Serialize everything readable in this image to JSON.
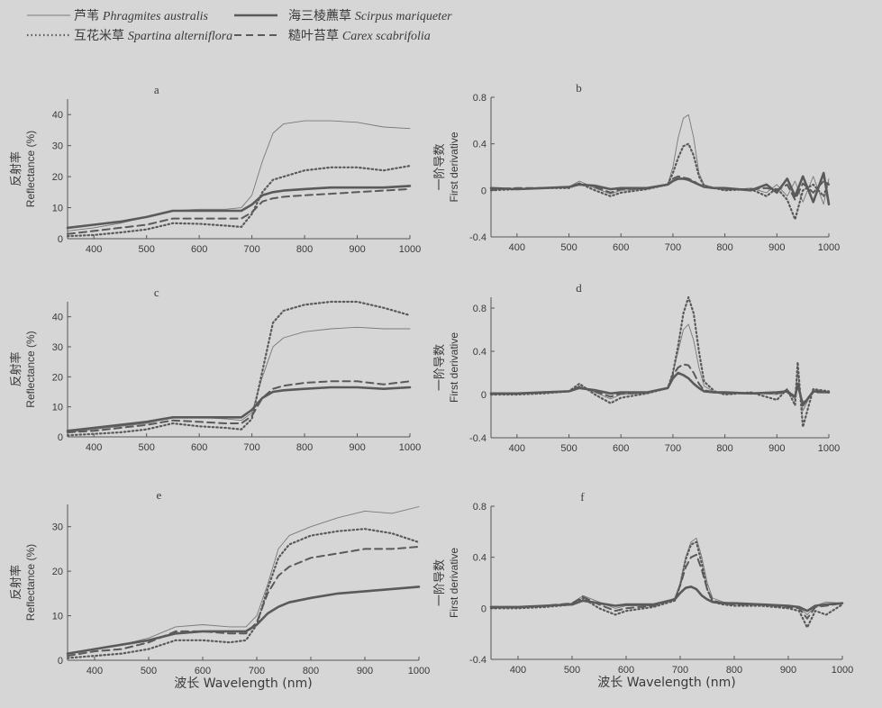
{
  "legend": [
    {
      "cn": "芦苇",
      "latin": "Phragmites australis",
      "style": "thin"
    },
    {
      "cn": "互花米草",
      "latin": "Spartina alterniflora",
      "style": "dotted"
    },
    {
      "cn": "海三棱藨草",
      "latin": "Scirpus mariqueter",
      "style": "thick"
    },
    {
      "cn": "糙叶苔草",
      "latin": "Carex scabrifolia",
      "style": "dashed"
    }
  ],
  "colors": {
    "background": "#d6d6d6",
    "axis": "#555555",
    "line": "#5a5a5a",
    "text": "#3a3a3a"
  },
  "shared_xlabel": "波长 Wavelength (nm)",
  "chart_data": [
    {
      "type": "line",
      "panel": "a",
      "ylabel_cn": "反射率",
      "ylabel": "Reflectance (%)",
      "xlim": [
        350,
        1000
      ],
      "ylim": [
        0,
        45
      ],
      "xticks": [
        400,
        500,
        600,
        700,
        800,
        900,
        1000
      ],
      "yticks": [
        0,
        10,
        20,
        30,
        40
      ],
      "x": [
        350,
        400,
        450,
        500,
        550,
        600,
        650,
        680,
        700,
        720,
        740,
        760,
        800,
        850,
        900,
        950,
        1000
      ],
      "series": [
        {
          "name": "芦苇 Phragmites australis",
          "values": [
            2.5,
            3.5,
            5,
            7,
            9,
            9.5,
            9.5,
            10,
            14,
            25,
            34,
            37,
            38,
            38,
            37.5,
            36,
            35.5
          ]
        },
        {
          "name": "互花米草 Spartina alterniflora",
          "values": [
            0.8,
            1.2,
            2,
            3,
            5,
            4.8,
            4.2,
            3.8,
            8,
            15,
            19,
            20,
            22,
            23,
            23,
            22,
            23.5
          ]
        },
        {
          "name": "海三棱藨草 Scirpus mariqueter",
          "values": [
            3.5,
            4.5,
            5.5,
            7,
            9,
            9,
            9,
            9,
            11,
            14,
            15,
            15.5,
            16,
            16.5,
            16.5,
            16.5,
            17
          ]
        },
        {
          "name": "糙叶苔草 Carex scabrifolia",
          "values": [
            1.5,
            2.5,
            3.5,
            4.5,
            6.5,
            6.5,
            6.5,
            6.5,
            8.5,
            12,
            13,
            13.5,
            14,
            14.5,
            15,
            15.5,
            16
          ]
        }
      ]
    },
    {
      "type": "line",
      "panel": "b",
      "ylabel_cn": "一阶导数",
      "ylabel": "First derivative",
      "xlim": [
        350,
        1000
      ],
      "ylim": [
        -0.4,
        0.8
      ],
      "xticks": [
        400,
        500,
        600,
        700,
        800,
        900,
        1000
      ],
      "yticks": [
        -0.4,
        0.0,
        0.4,
        0.8
      ],
      "x": [
        350,
        400,
        450,
        500,
        520,
        550,
        580,
        600,
        650,
        690,
        700,
        710,
        720,
        730,
        740,
        750,
        760,
        780,
        800,
        850,
        880,
        900,
        920,
        935,
        950,
        970,
        990,
        1000
      ],
      "series": [
        {
          "name": "芦苇 Phragmites australis",
          "values": [
            0.02,
            0.01,
            0.02,
            0.03,
            0.08,
            0.02,
            -0.03,
            0.0,
            0.01,
            0.05,
            0.2,
            0.45,
            0.62,
            0.65,
            0.45,
            0.15,
            0.05,
            0.02,
            0.0,
            0.02,
            -0.02,
            0.05,
            -0.05,
            0.08,
            -0.1,
            0.12,
            -0.12,
            0.1
          ]
        },
        {
          "name": "互花米草 Spartina alterniflora",
          "values": [
            0.0,
            0.01,
            0.02,
            0.02,
            0.06,
            0.0,
            -0.05,
            -0.02,
            0.01,
            0.05,
            0.15,
            0.28,
            0.38,
            0.4,
            0.3,
            0.12,
            0.04,
            0.02,
            0.0,
            0.01,
            -0.05,
            0.02,
            -0.08,
            -0.25,
            0.0,
            0.05,
            -0.05,
            0.08
          ]
        },
        {
          "name": "海三棱藨草 Scirpus mariqueter",
          "values": [
            0.02,
            0.01,
            0.02,
            0.03,
            0.05,
            0.04,
            0.01,
            0.02,
            0.02,
            0.05,
            0.08,
            0.1,
            0.1,
            0.09,
            0.07,
            0.05,
            0.03,
            0.02,
            0.02,
            0.0,
            0.05,
            -0.02,
            0.1,
            -0.05,
            0.12,
            -0.1,
            0.15,
            -0.12
          ]
        },
        {
          "name": "糙叶苔草 Carex scabrifolia",
          "values": [
            0.01,
            0.02,
            0.02,
            0.03,
            0.06,
            0.03,
            -0.02,
            0.01,
            0.02,
            0.05,
            0.1,
            0.12,
            0.11,
            0.1,
            0.08,
            0.05,
            0.03,
            0.02,
            0.01,
            0.01,
            0.02,
            0.0,
            0.05,
            -0.08,
            0.06,
            -0.02,
            0.08,
            0.05
          ]
        }
      ]
    },
    {
      "type": "line",
      "panel": "c",
      "ylabel_cn": "反射率",
      "ylabel": "Reflectance (%)",
      "xlim": [
        350,
        1000
      ],
      "ylim": [
        0,
        45
      ],
      "xticks": [
        400,
        500,
        600,
        700,
        800,
        900,
        1000
      ],
      "yticks": [
        0,
        10,
        20,
        30,
        40
      ],
      "x": [
        350,
        400,
        450,
        500,
        550,
        600,
        650,
        680,
        700,
        720,
        740,
        760,
        800,
        850,
        900,
        950,
        1000
      ],
      "series": [
        {
          "name": "芦苇 Phragmites australis",
          "values": [
            1.5,
            2.5,
            3.5,
            4.5,
            6.5,
            6.5,
            6,
            5.5,
            8,
            20,
            30,
            33,
            35,
            36,
            36.5,
            36,
            36
          ]
        },
        {
          "name": "互花米草 Spartina alterniflora",
          "values": [
            0.5,
            1,
            1.5,
            2.5,
            4.5,
            3.5,
            3,
            2.5,
            6,
            22,
            38,
            42,
            44,
            45,
            45,
            43,
            40.5
          ]
        },
        {
          "name": "海三棱藨草 Scirpus mariqueter",
          "values": [
            2,
            3,
            4,
            5,
            6.5,
            6.5,
            6.5,
            6.5,
            9,
            13,
            15,
            15.5,
            16,
            16.5,
            16.5,
            16,
            16.5
          ]
        },
        {
          "name": "糙叶苔草 Carex scabrifolia",
          "values": [
            1.5,
            2,
            3,
            4,
            5.5,
            5,
            4.5,
            4.5,
            7,
            13,
            16,
            17,
            18,
            18.5,
            18.5,
            17.5,
            18.5
          ]
        }
      ]
    },
    {
      "type": "line",
      "panel": "d",
      "ylabel_cn": "一阶导数",
      "ylabel": "First derivative",
      "xlim": [
        350,
        1000
      ],
      "ylim": [
        -0.4,
        0.9
      ],
      "xticks": [
        400,
        500,
        600,
        700,
        800,
        900,
        1000
      ],
      "yticks": [
        -0.4,
        0.0,
        0.4,
        0.8
      ],
      "x": [
        350,
        400,
        450,
        500,
        520,
        550,
        580,
        600,
        650,
        690,
        700,
        710,
        720,
        730,
        740,
        750,
        760,
        780,
        800,
        850,
        900,
        920,
        935,
        940,
        950,
        970,
        1000
      ],
      "series": [
        {
          "name": "芦苇 Phragmites australis",
          "values": [
            0.01,
            0.01,
            0.02,
            0.03,
            0.08,
            0.02,
            -0.04,
            0.0,
            0.01,
            0.06,
            0.2,
            0.4,
            0.6,
            0.65,
            0.5,
            0.25,
            0.08,
            0.02,
            0.01,
            0.02,
            0.0,
            0.05,
            -0.05,
            0.2,
            -0.15,
            0.05,
            0.02
          ]
        },
        {
          "name": "互花米草 Spartina alterniflora",
          "values": [
            0.0,
            0.0,
            0.01,
            0.03,
            0.1,
            0.0,
            -0.08,
            -0.03,
            0.01,
            0.06,
            0.2,
            0.45,
            0.75,
            0.9,
            0.75,
            0.4,
            0.12,
            0.03,
            0.0,
            0.02,
            -0.05,
            0.05,
            -0.1,
            0.3,
            -0.3,
            0.05,
            0.03
          ]
        },
        {
          "name": "海三棱藨草 Scirpus mariqueter",
          "values": [
            0.01,
            0.01,
            0.02,
            0.03,
            0.06,
            0.04,
            0.01,
            0.02,
            0.02,
            0.06,
            0.15,
            0.2,
            0.18,
            0.15,
            0.1,
            0.06,
            0.03,
            0.02,
            0.02,
            0.01,
            0.02,
            0.03,
            -0.02,
            0.1,
            -0.1,
            0.03,
            0.02
          ]
        },
        {
          "name": "糙叶苔草 Carex scabrifolia",
          "values": [
            0.01,
            0.01,
            0.02,
            0.03,
            0.07,
            0.03,
            -0.02,
            0.01,
            0.02,
            0.06,
            0.18,
            0.25,
            0.28,
            0.27,
            0.2,
            0.1,
            0.04,
            0.02,
            0.01,
            0.01,
            0.01,
            0.02,
            -0.03,
            0.08,
            -0.08,
            0.02,
            0.02
          ]
        }
      ]
    },
    {
      "type": "line",
      "panel": "e",
      "ylabel_cn": "反射率",
      "ylabel": "Reflectance (%)",
      "xlim": [
        350,
        1000
      ],
      "ylim": [
        0,
        35
      ],
      "xticks": [
        400,
        500,
        600,
        700,
        800,
        900,
        1000
      ],
      "yticks": [
        0,
        10,
        20,
        30
      ],
      "x": [
        350,
        400,
        450,
        500,
        550,
        600,
        650,
        680,
        700,
        720,
        740,
        760,
        800,
        850,
        900,
        950,
        1000
      ],
      "series": [
        {
          "name": "芦苇 Phragmites australis",
          "values": [
            1.5,
            2.5,
            3.5,
            5,
            7.5,
            8,
            7.5,
            7.5,
            10,
            17,
            25,
            28,
            30,
            32,
            33.5,
            33,
            34.5
          ]
        },
        {
          "name": "互花米草 Spartina alterniflora",
          "values": [
            0.5,
            1,
            1.5,
            2.5,
            4.5,
            4.5,
            4,
            4.5,
            8,
            16,
            23,
            26,
            28,
            29,
            29.5,
            28.5,
            26.5
          ]
        },
        {
          "name": "海三棱藨草 Scirpus mariqueter",
          "values": [
            1.5,
            2.5,
            3.5,
            4.5,
            6,
            6.5,
            6.5,
            6.5,
            8,
            10.5,
            12,
            13,
            14,
            15,
            15.5,
            16,
            16.5
          ]
        },
        {
          "name": "糙叶苔草 Carex scabrifolia",
          "values": [
            1,
            2,
            2.5,
            4,
            6.5,
            6.5,
            6,
            6,
            8.5,
            15,
            19,
            21,
            23,
            24,
            25,
            25,
            25.5
          ]
        }
      ]
    },
    {
      "type": "line",
      "panel": "f",
      "ylabel_cn": "一阶导数",
      "ylabel": "First derivative",
      "xlim": [
        350,
        1000
      ],
      "ylim": [
        -0.4,
        0.8
      ],
      "xticks": [
        400,
        500,
        600,
        700,
        800,
        900,
        1000
      ],
      "yticks": [
        -0.4,
        0.0,
        0.4,
        0.8
      ],
      "x": [
        350,
        400,
        450,
        500,
        520,
        550,
        580,
        600,
        650,
        690,
        700,
        710,
        720,
        730,
        740,
        750,
        760,
        780,
        800,
        850,
        900,
        920,
        935,
        950,
        970,
        1000
      ],
      "series": [
        {
          "name": "芦苇 Phragmites australis",
          "values": [
            0.01,
            0.01,
            0.02,
            0.04,
            0.1,
            0.05,
            0.0,
            0.02,
            0.02,
            0.08,
            0.2,
            0.4,
            0.52,
            0.55,
            0.4,
            0.2,
            0.08,
            0.05,
            0.04,
            0.03,
            0.02,
            0.01,
            -0.05,
            0.02,
            0.05,
            0.04
          ]
        },
        {
          "name": "互花米草 Spartina alterniflora",
          "values": [
            0.0,
            0.0,
            0.01,
            0.03,
            0.08,
            0.0,
            -0.05,
            -0.02,
            0.01,
            0.06,
            0.18,
            0.38,
            0.5,
            0.52,
            0.35,
            0.15,
            0.05,
            0.03,
            0.02,
            0.02,
            0.0,
            -0.02,
            -0.15,
            -0.02,
            -0.05,
            0.03
          ]
        },
        {
          "name": "海三棱藨草 Scirpus mariqueter",
          "values": [
            0.01,
            0.01,
            0.02,
            0.03,
            0.06,
            0.04,
            0.02,
            0.03,
            0.03,
            0.07,
            0.12,
            0.16,
            0.17,
            0.15,
            0.1,
            0.07,
            0.05,
            0.04,
            0.04,
            0.03,
            0.02,
            0.01,
            -0.02,
            0.02,
            0.03,
            0.04
          ]
        },
        {
          "name": "糙叶苔草 Carex scabrifolia",
          "values": [
            0.01,
            0.01,
            0.02,
            0.04,
            0.09,
            0.03,
            -0.02,
            0.0,
            0.02,
            0.07,
            0.18,
            0.32,
            0.4,
            0.42,
            0.3,
            0.15,
            0.06,
            0.04,
            0.03,
            0.03,
            0.01,
            0.0,
            -0.08,
            0.01,
            0.02,
            0.04
          ]
        }
      ]
    }
  ]
}
